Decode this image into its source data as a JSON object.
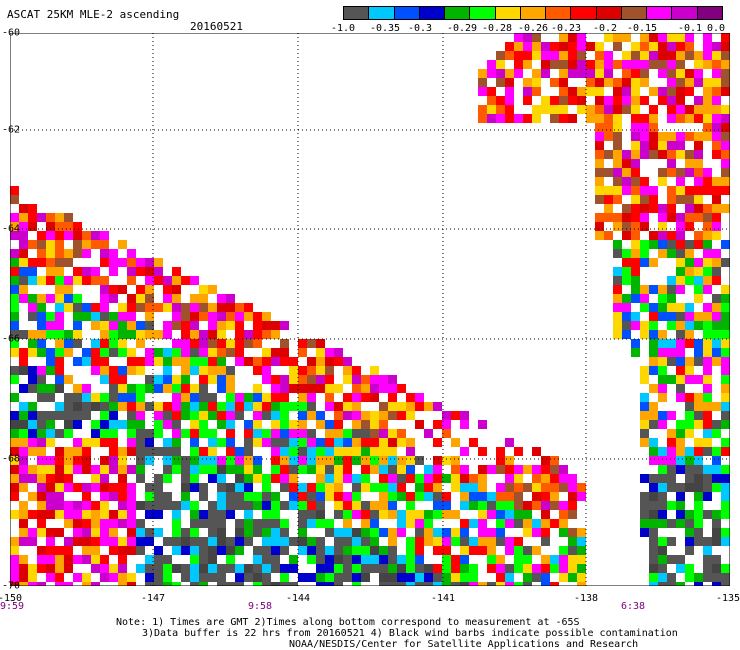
{
  "header": {
    "title": "ASCAT 25KM MLE-2 ascending",
    "date": "20160521"
  },
  "colorbar": {
    "colors": [
      "#555555",
      "#00c8ff",
      "#0050ff",
      "#0000cc",
      "#00b400",
      "#00ff00",
      "#ffd700",
      "#ffa500",
      "#ff5a00",
      "#ff0000",
      "#dc0000",
      "#a0522d",
      "#ff00ff",
      "#cc00cc",
      "#800080"
    ],
    "labels": [
      "-1.0",
      "-0.35",
      "-0.3",
      "-0.29",
      "-0.28",
      "-0.26",
      "-0.23",
      "-0.2",
      "-0.15",
      "-0.1",
      "0.0"
    ]
  },
  "axes": {
    "lat_labels": [
      "-60",
      "-62",
      "-64",
      "-66",
      "-68",
      "-70"
    ],
    "lon_labels": [
      "-150",
      "-147",
      "-144",
      "-141",
      "-138",
      "-135"
    ],
    "pass_times": [
      "9:59",
      "9:58",
      "6:38"
    ]
  },
  "notes": {
    "line1": "Note: 1) Times are GMT 2)Times along bottom correspond to measurement at -65S",
    "line2": "3)Data buffer is 22 hrs from 20160521 4) Black wind barbs indicate possible contamination",
    "line3": "NOAA/NESDIS/Center for Satellite Applications and Research"
  }
}
